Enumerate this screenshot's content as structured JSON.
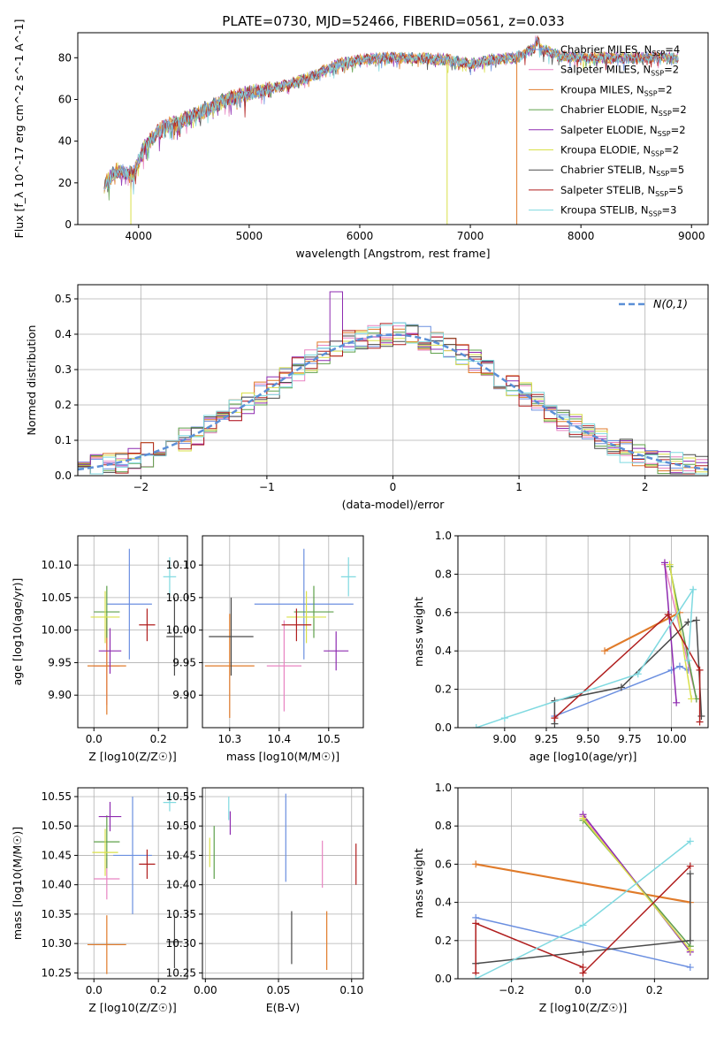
{
  "figure_title": "PLATE=0730, MJD=52466, FIBERID=0561, z=0.033",
  "models": [
    {
      "key": "cm",
      "name": "Chabrier MILES",
      "nssp": "4",
      "color": "#6b8fe0"
    },
    {
      "key": "sm",
      "name": "Salpeter MILES",
      "nssp": "2",
      "color": "#e884c2"
    },
    {
      "key": "km",
      "name": "Kroupa MILES",
      "nssp": "2",
      "color": "#e07b2a"
    },
    {
      "key": "ce",
      "name": "Chabrier ELODIE",
      "nssp": "2",
      "color": "#5ea04a"
    },
    {
      "key": "se",
      "name": "Salpeter ELODIE",
      "nssp": "2",
      "color": "#8e2bb0"
    },
    {
      "key": "ke",
      "name": "Kroupa ELODIE",
      "nssp": "2",
      "color": "#d9e04a"
    },
    {
      "key": "cs",
      "name": "Chabrier STELIB",
      "nssp": "5",
      "color": "#4a4a4a"
    },
    {
      "key": "ss",
      "name": "Salpeter STELIB",
      "nssp": "5",
      "color": "#b01e1e"
    },
    {
      "key": "ks",
      "name": "Kroupa STELIB",
      "nssp": "3",
      "color": "#7fd9e0"
    }
  ],
  "chart_data": [
    {
      "id": "spectrum",
      "type": "line",
      "xlabel": "wavelength [Angstrom, rest frame]",
      "ylabel": "Flux [f_λ 10^-17 erg cm^-2 s^-1 A^-1]",
      "xlim": [
        3450,
        9150
      ],
      "ylim": [
        0,
        92
      ],
      "xticks": [
        4000,
        5000,
        6000,
        7000,
        8000,
        9000
      ],
      "yticks": [
        0,
        20,
        40,
        60,
        80
      ],
      "legend": "upper-right",
      "continuum_anchors": [
        [
          3690,
          19
        ],
        [
          3800,
          26
        ],
        [
          3950,
          24
        ],
        [
          4050,
          37
        ],
        [
          4200,
          46
        ],
        [
          4400,
          50
        ],
        [
          4600,
          55
        ],
        [
          4800,
          60
        ],
        [
          5000,
          63
        ],
        [
          5200,
          65
        ],
        [
          5400,
          68
        ],
        [
          5600,
          72
        ],
        [
          5800,
          77
        ],
        [
          6000,
          79
        ],
        [
          6200,
          80
        ],
        [
          6500,
          80
        ],
        [
          6800,
          79
        ],
        [
          7000,
          77
        ],
        [
          7200,
          79
        ],
        [
          7400,
          80
        ],
        [
          7600,
          85
        ],
        [
          7800,
          81
        ],
        [
          8000,
          80
        ],
        [
          8200,
          80
        ],
        [
          8500,
          80
        ],
        [
          8880,
          80
        ]
      ],
      "dropouts": [
        {
          "series": "ke",
          "x": 3930
        },
        {
          "series": "ke",
          "x": 6790
        },
        {
          "series": "km",
          "x": 7420
        }
      ]
    },
    {
      "id": "residuals",
      "type": "step-histogram",
      "xlabel": "(data-model)/error",
      "ylabel": "Normed distribution",
      "xlim": [
        -2.5,
        2.5
      ],
      "ylim": [
        0,
        0.54
      ],
      "xticks": [
        -2,
        -1,
        0,
        1,
        2
      ],
      "yticks": [
        0.0,
        0.1,
        0.2,
        0.3,
        0.4,
        0.5
      ],
      "bin_width": 0.1,
      "reference_label": "N(0,1)",
      "reference_color": "#5b8fd6",
      "legend": "upper-right",
      "grid": true
    },
    {
      "id": "age-vs-z",
      "type": "errorbar",
      "xlabel": "Z [log10(Z/Z☉)]",
      "ylabel": "age [log10(age/yr)]",
      "xlim": [
        -0.05,
        0.29
      ],
      "ylim": [
        9.85,
        10.145
      ],
      "xticks": [
        0.0,
        0.2
      ],
      "yticks": [
        9.9,
        9.95,
        10.0,
        10.05,
        10.1
      ],
      "grid": true,
      "points": [
        {
          "series": "cm",
          "x": 0.11,
          "xerr": 0.07,
          "y": 10.04,
          "yerr": 0.085
        },
        {
          "series": "sm",
          "x": 0.04,
          "xerr": 0.04,
          "y": 9.945,
          "yerr": 0.06
        },
        {
          "series": "km",
          "x": 0.04,
          "xerr": 0.06,
          "y": 9.945,
          "yerr": 0.075
        },
        {
          "series": "ce",
          "x": 0.04,
          "xerr": 0.04,
          "y": 10.028,
          "yerr": 0.04
        },
        {
          "series": "se",
          "x": 0.05,
          "xerr": 0.035,
          "y": 9.968,
          "yerr": 0.035
        },
        {
          "series": "ke",
          "x": 0.035,
          "xerr": 0.045,
          "y": 10.02,
          "yerr": 0.04
        },
        {
          "series": "cs",
          "x": 0.25,
          "xerr": 0.025,
          "y": 9.99,
          "yerr": 0.06
        },
        {
          "series": "ss",
          "x": 0.165,
          "xerr": 0.025,
          "y": 10.008,
          "yerr": 0.025
        },
        {
          "series": "ks",
          "x": 0.235,
          "xerr": 0.02,
          "y": 10.082,
          "yerr": 0.03
        }
      ]
    },
    {
      "id": "age-vs-mass",
      "type": "errorbar",
      "xlabel": "mass [log10(M/M☉)]",
      "ylabel": "",
      "xlim": [
        10.245,
        10.57
      ],
      "ylim": [
        9.85,
        10.145
      ],
      "xticks": [
        10.3,
        10.4,
        10.5
      ],
      "yticks": [
        9.9,
        9.95,
        10.0,
        10.05,
        10.1
      ],
      "grid": true,
      "points": [
        {
          "series": "cm",
          "x": 10.45,
          "xerr": 0.1,
          "y": 10.04,
          "yerr": 0.085
        },
        {
          "series": "sm",
          "x": 10.41,
          "xerr": 0.035,
          "y": 9.945,
          "yerr": 0.07
        },
        {
          "series": "km",
          "x": 10.3,
          "xerr": 0.05,
          "y": 9.945,
          "yerr": 0.08
        },
        {
          "series": "ce",
          "x": 10.47,
          "xerr": 0.04,
          "y": 10.028,
          "yerr": 0.04
        },
        {
          "series": "se",
          "x": 10.515,
          "xerr": 0.025,
          "y": 9.968,
          "yerr": 0.03
        },
        {
          "series": "ke",
          "x": 10.455,
          "xerr": 0.04,
          "y": 10.02,
          "yerr": 0.04
        },
        {
          "series": "cs",
          "x": 10.303,
          "xerr": 0.045,
          "y": 9.99,
          "yerr": 0.06
        },
        {
          "series": "ss",
          "x": 10.435,
          "xerr": 0.03,
          "y": 10.008,
          "yerr": 0.025
        },
        {
          "series": "ks",
          "x": 10.54,
          "xerr": 0.015,
          "y": 10.082,
          "yerr": 0.03
        }
      ]
    },
    {
      "id": "mass-vs-z",
      "type": "errorbar",
      "xlabel": "Z [log10(Z/Z☉)]",
      "ylabel": "mass [log10(M/M☉)]",
      "xlim": [
        -0.05,
        0.29
      ],
      "ylim": [
        10.24,
        10.565
      ],
      "xticks": [
        0.0,
        0.2
      ],
      "yticks": [
        10.25,
        10.3,
        10.35,
        10.4,
        10.45,
        10.5,
        10.55
      ],
      "grid": true,
      "points": [
        {
          "series": "cm",
          "x": 0.12,
          "xerr": 0.06,
          "y": 10.45,
          "yerr": 0.1
        },
        {
          "series": "sm",
          "x": 0.04,
          "xerr": 0.04,
          "y": 10.41,
          "yerr": 0.035
        },
        {
          "series": "km",
          "x": 0.04,
          "xerr": 0.06,
          "y": 10.298,
          "yerr": 0.05
        },
        {
          "series": "ce",
          "x": 0.04,
          "xerr": 0.04,
          "y": 10.473,
          "yerr": 0.045
        },
        {
          "series": "se",
          "x": 0.05,
          "xerr": 0.035,
          "y": 10.516,
          "yerr": 0.025
        },
        {
          "series": "ke",
          "x": 0.035,
          "xerr": 0.04,
          "y": 10.455,
          "yerr": 0.04
        },
        {
          "series": "cs",
          "x": 0.25,
          "xerr": 0.025,
          "y": 10.303,
          "yerr": 0.045
        },
        {
          "series": "ss",
          "x": 0.165,
          "xerr": 0.025,
          "y": 10.435,
          "yerr": 0.025
        },
        {
          "series": "ks",
          "x": 0.235,
          "xerr": 0.02,
          "y": 10.54,
          "yerr": 0.015
        }
      ]
    },
    {
      "id": "mass-vs-ebv",
      "type": "errorbar",
      "xlabel": "E(B-V)",
      "ylabel": "",
      "xlim": [
        -0.002,
        0.108
      ],
      "ylim": [
        10.24,
        10.565
      ],
      "xticks": [
        0.0,
        0.05,
        0.1
      ],
      "yticks": [
        10.25,
        10.3,
        10.35,
        10.4,
        10.45,
        10.5,
        10.55
      ],
      "grid": true,
      "points": [
        {
          "series": "cm",
          "x": 0.055,
          "xerr": 0,
          "y": 10.48,
          "yerr": 0.075
        },
        {
          "series": "sm",
          "x": 0.08,
          "xerr": 0,
          "y": 10.435,
          "yerr": 0.04
        },
        {
          "series": "km",
          "x": 0.083,
          "xerr": 0,
          "y": 10.305,
          "yerr": 0.05
        },
        {
          "series": "ce",
          "x": 0.006,
          "xerr": 0,
          "y": 10.455,
          "yerr": 0.045
        },
        {
          "series": "se",
          "x": 0.017,
          "xerr": 0,
          "y": 10.505,
          "yerr": 0.02
        },
        {
          "series": "ke",
          "x": 0.003,
          "xerr": 0,
          "y": 10.455,
          "yerr": 0.025
        },
        {
          "series": "cs",
          "x": 0.059,
          "xerr": 0,
          "y": 10.31,
          "yerr": 0.045
        },
        {
          "series": "ss",
          "x": 0.103,
          "xerr": 0,
          "y": 10.435,
          "yerr": 0.035
        },
        {
          "series": "ks",
          "x": 0.016,
          "xerr": 0,
          "y": 10.53,
          "yerr": 0.02
        }
      ]
    },
    {
      "id": "weight-vs-age",
      "type": "line",
      "xlabel": "age [log10(age/yr)]",
      "ylabel": "mass weight",
      "xlim": [
        8.72,
        10.22
      ],
      "ylim": [
        0,
        1.0
      ],
      "xticks": [
        9.0,
        9.25,
        9.5,
        9.75,
        10.0
      ],
      "yticks": [
        0.0,
        0.2,
        0.4,
        0.6,
        0.8,
        1.0
      ],
      "grid": true,
      "series": [
        {
          "series": "cm",
          "x": [
            9.3,
            10.0,
            10.05,
            10.1
          ],
          "y": [
            0.06,
            0.3,
            0.32,
            0.3
          ]
        },
        {
          "series": "sm",
          "x": [
            9.96,
            10.15
          ],
          "y": [
            0.85,
            0.15
          ]
        },
        {
          "series": "km",
          "x": [
            9.6,
            10.05
          ],
          "y": [
            0.4,
            0.6
          ]
        },
        {
          "series": "ce",
          "x": [
            9.99,
            10.15
          ],
          "y": [
            0.84,
            0.15
          ]
        },
        {
          "series": "se",
          "x": [
            9.96,
            10.03
          ],
          "y": [
            0.86,
            0.13
          ]
        },
        {
          "series": "ke",
          "x": [
            9.99,
            10.12
          ],
          "y": [
            0.85,
            0.15
          ]
        },
        {
          "series": "cs",
          "x": [
            9.3,
            9.3,
            9.7,
            10.1,
            10.15,
            10.18
          ],
          "y": [
            0.02,
            0.14,
            0.21,
            0.55,
            0.56,
            0.06
          ]
        },
        {
          "series": "ss",
          "x": [
            9.3,
            9.98,
            10.17,
            10.17
          ],
          "y": [
            0.05,
            0.59,
            0.3,
            0.03
          ]
        },
        {
          "series": "ks",
          "x": [
            8.83,
            9.0,
            9.8,
            10.13,
            10.1
          ],
          "y": [
            0.0,
            0.05,
            0.28,
            0.72,
            0.35
          ]
        }
      ]
    },
    {
      "id": "weight-vs-z",
      "type": "line",
      "xlabel": "Z [log10(Z/Z☉)]",
      "ylabel": "mass weight",
      "xlim": [
        -0.35,
        0.35
      ],
      "ylim": [
        0,
        1.0
      ],
      "xticks": [
        -0.2,
        0.0,
        0.2
      ],
      "yticks": [
        0.0,
        0.2,
        0.4,
        0.6,
        0.8,
        1.0
      ],
      "grid": true,
      "series": [
        {
          "series": "cm",
          "x": [
            -0.3,
            0.3
          ],
          "y": [
            0.32,
            0.06
          ]
        },
        {
          "series": "sm",
          "x": [
            0.0,
            0.3
          ],
          "y": [
            0.85,
            0.15
          ]
        },
        {
          "series": "km",
          "x": [
            -0.3,
            0.3
          ],
          "y": [
            0.6,
            0.4
          ]
        },
        {
          "series": "ce",
          "x": [
            0.0,
            0.3
          ],
          "y": [
            0.83,
            0.17
          ]
        },
        {
          "series": "se",
          "x": [
            0.0,
            0.3
          ],
          "y": [
            0.86,
            0.14
          ]
        },
        {
          "series": "ke",
          "x": [
            0.0,
            0.3
          ],
          "y": [
            0.84,
            0.15
          ]
        },
        {
          "series": "cs",
          "x": [
            -0.3,
            0.0,
            0.3,
            0.3
          ],
          "y": [
            0.08,
            0.14,
            0.2,
            0.55
          ]
        },
        {
          "series": "ss",
          "x": [
            -0.3,
            -0.3,
            0.0,
            0.0,
            0.3
          ],
          "y": [
            0.03,
            0.29,
            0.06,
            0.03,
            0.59
          ]
        },
        {
          "series": "ks",
          "x": [
            -0.3,
            0.0,
            0.3
          ],
          "y": [
            0.0,
            0.28,
            0.72
          ]
        }
      ]
    }
  ]
}
